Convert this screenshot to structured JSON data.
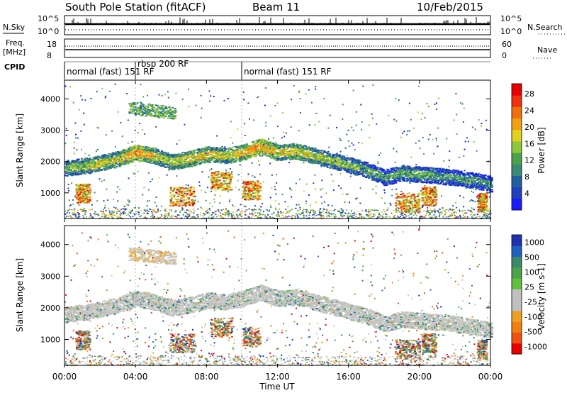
{
  "header": {
    "station": "South Pole Station (fitACF)",
    "beam": "Beam 11",
    "date": "10/Feb/2015"
  },
  "summary": {
    "nsky_label": "N.Sky",
    "nsearch_label": "N.Search",
    "freq_label_1": "Freq.",
    "freq_label_2": "[MHz]",
    "nave_label": "Nave",
    "cpid_label": "CPID",
    "nsky_ticks": [
      "10^5",
      "10^0"
    ],
    "nsearch_ticks": [
      "10^5",
      "10^0"
    ],
    "freq_ticks": [
      "18",
      "8"
    ],
    "nave_ticks": [
      "60",
      "0"
    ],
    "cpid_segments": [
      {
        "label": "normal (fast) 151 RF",
        "start_hour": 0,
        "end_hour": 4.0
      },
      {
        "label": "rbsp 200 RF",
        "start_hour": 4.0,
        "end_hour": 10.0
      },
      {
        "label": "normal (fast) 151 RF",
        "start_hour": 10.0,
        "end_hour": 24.0
      }
    ]
  },
  "chart_data": [
    {
      "type": "heatmap",
      "panel": "power",
      "xlabel": "",
      "ylabel": "Slant Range [km]",
      "xlim": [
        0,
        24
      ],
      "ylim": [
        180,
        4600
      ],
      "yticks": [
        "1000",
        "2000",
        "3000",
        "4000"
      ],
      "colorbar_label": "Power [dB]",
      "colorbar_ticks": [
        "4",
        "8",
        "12",
        "16",
        "20",
        "24",
        "28"
      ],
      "colorbar_colors": [
        "#1a1aff",
        "#2040c0",
        "#2060a0",
        "#3a8a7a",
        "#4aa24a",
        "#8cc83a",
        "#e0d020",
        "#f0a010",
        "#f07010",
        "#f03010",
        "#e80000"
      ],
      "echo_bands": [
        {
          "t": [
            0,
            1.5,
            3,
            4,
            5,
            6,
            7,
            8,
            9,
            10,
            11,
            12,
            13,
            14,
            15,
            16,
            17,
            18,
            19,
            20,
            21,
            22,
            23,
            24
          ],
          "range_km": [
            1800,
            1900,
            2100,
            2300,
            2200,
            2000,
            2100,
            2250,
            2200,
            2300,
            2500,
            2300,
            2350,
            2200,
            2050,
            1900,
            1750,
            1500,
            1650,
            1600,
            1550,
            1500,
            1400,
            1300
          ],
          "power_db": [
            10,
            12,
            14,
            18,
            14,
            12,
            14,
            15,
            13,
            16,
            18,
            14,
            14,
            12,
            11,
            10,
            9,
            8,
            9,
            8,
            8,
            7,
            7,
            6
          ]
        }
      ]
    },
    {
      "type": "heatmap",
      "panel": "velocity",
      "xlabel": "Time UT",
      "ylabel": "Slant Range [km]",
      "xlim": [
        0,
        24
      ],
      "ylim": [
        180,
        4600
      ],
      "xticks": [
        "00:00",
        "04:00",
        "08:00",
        "12:00",
        "16:00",
        "20:00",
        "00:00"
      ],
      "yticks": [
        "1000",
        "2000",
        "3000",
        "4000"
      ],
      "colorbar_label": "Velocity [m s-1]",
      "colorbar_ticks": [
        "1000",
        "500",
        "100",
        "25",
        "-25",
        "-100",
        "-500",
        "-1000"
      ],
      "colorbar_colors": [
        "#2030b0",
        "#2060c0",
        "#3a8a6a",
        "#4aa24a",
        "#60c040",
        "#c0c0c0",
        "#c0c0c0",
        "#f0a020",
        "#f08010",
        "#f05010",
        "#e80000"
      ]
    }
  ],
  "axis": {
    "time_label": "Time UT"
  }
}
